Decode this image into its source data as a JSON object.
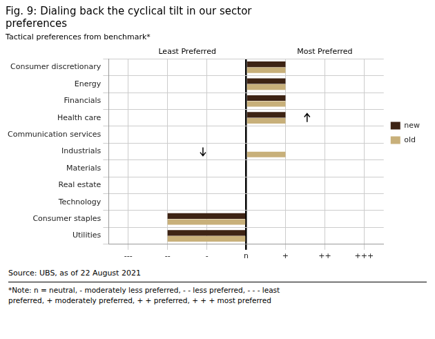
{
  "chart_data": {
    "type": "bar",
    "orientation": "horizontal",
    "title": [
      "Fig. 9: Dialing back the cyclical tilt in our sector",
      "preferences"
    ],
    "subtitle": "Tactical preferences from benchmark*",
    "source": "Source: UBS, as of 22 August 2021",
    "note": "*Note: n = neutral, - moderately less preferred, - - less preferred, - - - least\npreferred, + moderately preferred, + + preferred, + + + most preferred",
    "categories": [
      "Consumer discretionary",
      "Energy",
      "Financials",
      "Health care",
      "Communication services",
      "Industrials",
      "Materials",
      "Real estate",
      "Technology",
      "Consumer staples",
      "Utilities"
    ],
    "series": [
      {
        "name": "new",
        "color": "#3d2314",
        "values": [
          1,
          1,
          1,
          1,
          0,
          0,
          0,
          0,
          0,
          -2,
          -2
        ]
      },
      {
        "name": "old",
        "color": "#c8b07a",
        "values": [
          1,
          1,
          1,
          1,
          0,
          1,
          0,
          0,
          0,
          -2,
          -2
        ]
      }
    ],
    "xlim": [
      -3.5,
      3.5
    ],
    "xticks": [
      {
        "value": -3,
        "label": "---"
      },
      {
        "value": -2,
        "label": "--"
      },
      {
        "value": -1,
        "label": "-"
      },
      {
        "value": 0,
        "label": "n"
      },
      {
        "value": 1,
        "label": "+"
      },
      {
        "value": 2,
        "label": "++"
      },
      {
        "value": 3,
        "label": "+++"
      }
    ],
    "annotations": [
      {
        "text": "Least Preferred",
        "x": -1.5
      },
      {
        "text": "Most Preferred",
        "x": 2.0
      },
      {
        "arrow": "up",
        "x": 1.55,
        "category": "Health care"
      },
      {
        "arrow": "down",
        "x": -1.1,
        "category": "Industrials"
      }
    ],
    "grid": true,
    "legend": "right"
  }
}
